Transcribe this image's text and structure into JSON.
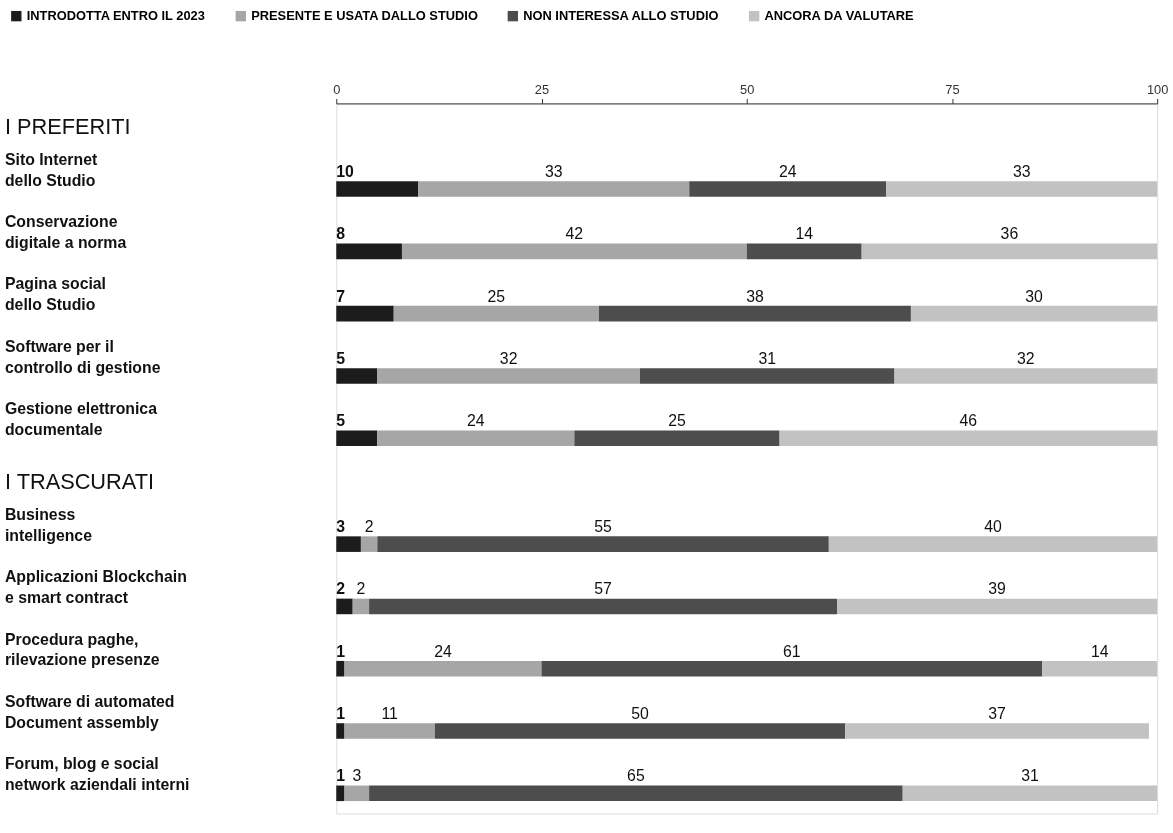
{
  "chart_data": {
    "type": "bar",
    "orientation": "horizontal",
    "stacked": true,
    "data_labels": true,
    "categories": [
      "Sito Internet\ndello Studio",
      "Conservazione\ndigitale a norma",
      "Pagina social\ndello Studio",
      "Software per il\ncontrollo di gestione",
      "Gestione elettronica\ndocumentale",
      "Business\nintelligence",
      "Applicazioni Blockchain\ne smart contract",
      "Procedura paghe,\nrilevazione presenze",
      "Software di automated\nDocument assembly",
      "Forum, blog e social\nnetwork aziendali interni"
    ],
    "series": [
      {
        "name": "INTRODOTTA ENTRO IL 2023",
        "color": "#1c1c1c",
        "values": [
          10,
          8,
          7,
          5,
          5,
          3,
          2,
          1,
          1,
          1
        ]
      },
      {
        "name": "PRESENTE E USATA DALLO STUDIO",
        "color": "#a6a6a6",
        "values": [
          33,
          42,
          25,
          32,
          24,
          2,
          2,
          24,
          11,
          3
        ]
      },
      {
        "name": "NON INTERESSA ALLO STUDIO",
        "color": "#4d4d4d",
        "values": [
          24,
          14,
          38,
          31,
          25,
          55,
          57,
          61,
          50,
          65
        ]
      },
      {
        "name": "ANCORA DA VALUTARE",
        "color": "#c2c2c2",
        "values": [
          33,
          36,
          30,
          32,
          46,
          40,
          39,
          14,
          37,
          31
        ]
      }
    ],
    "xlim": [
      0,
      100
    ],
    "xticks": [
      0,
      25,
      50,
      75,
      100
    ],
    "grid": false,
    "legend": "top",
    "annotations": [
      "I PREFERITI",
      "I TRASCURATI"
    ]
  }
}
